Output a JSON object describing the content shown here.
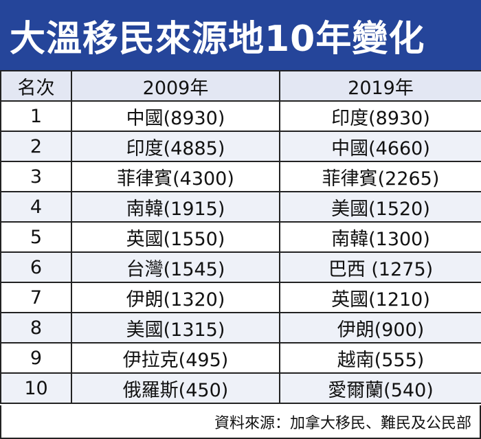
{
  "title": "大溫移民來源地10年變化",
  "table": {
    "headers": [
      "名次",
      "2009年",
      "2019年"
    ],
    "rows": [
      {
        "rank": "1",
        "y2009": "中國(8930)",
        "y2019": "印度(8930)"
      },
      {
        "rank": "2",
        "y2009": "印度(4885)",
        "y2019": "中國(4660)"
      },
      {
        "rank": "3",
        "y2009": "菲律賓(4300)",
        "y2019": "菲律賓(2265)"
      },
      {
        "rank": "4",
        "y2009": "南韓(1915)",
        "y2019": "美國(1520)"
      },
      {
        "rank": "5",
        "y2009": "英國(1550)",
        "y2019": "南韓(1300)"
      },
      {
        "rank": "6",
        "y2009": "台灣(1545)",
        "y2019": "巴西 (1275)"
      },
      {
        "rank": "7",
        "y2009": "伊朗(1320)",
        "y2019": "英國(1210)"
      },
      {
        "rank": "8",
        "y2009": "美國(1315)",
        "y2019": "伊朗(900)"
      },
      {
        "rank": "9",
        "y2009": "伊拉克(495)",
        "y2019": "越南(555)"
      },
      {
        "rank": "10",
        "y2009": "俄羅斯(450)",
        "y2019": "愛爾蘭(540)"
      }
    ]
  },
  "source": "資料來源：加拿大移民、難民及公民部",
  "colors": {
    "title_bg": "#25459a",
    "header_bg": "#e3e7f3",
    "alt_row_bg": "#eef1f8"
  }
}
